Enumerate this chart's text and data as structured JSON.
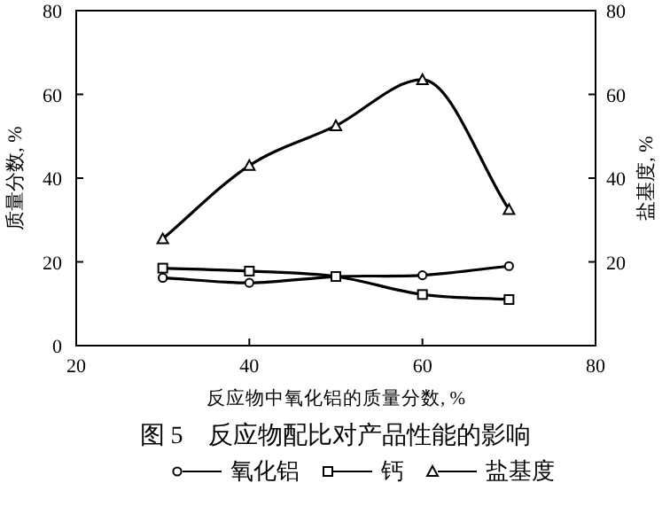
{
  "chart_data": {
    "type": "line",
    "title": "图 5　反应物配比对产品性能的影响",
    "xlabel": "反应物中氧化铝的质量分数, %",
    "ylabel": "质量分数, %",
    "y2label": "盐基度, %",
    "x": [
      30,
      40,
      50,
      60,
      70
    ],
    "series": [
      {
        "name": "氧化铝",
        "color": "#000000",
        "marker": "circle",
        "values": [
          16.2,
          15,
          16.5,
          16.8,
          19
        ]
      },
      {
        "name": "钙",
        "color": "#000000",
        "marker": "square",
        "values": [
          18.5,
          17.8,
          16.5,
          12.2,
          11
        ]
      },
      {
        "name": "盐基度",
        "color": "#000000",
        "marker": "triangle",
        "values": [
          25.5,
          43,
          52.5,
          63.5,
          32.5
        ]
      }
    ],
    "xlim": [
      20,
      80
    ],
    "xticks": [
      20,
      40,
      60,
      80
    ],
    "ylim": [
      0,
      80
    ],
    "yticks": [
      0,
      20,
      40,
      60,
      80
    ],
    "y2lim": [
      0,
      80
    ],
    "y2ticks": [
      20,
      40,
      60,
      80
    ],
    "grid": false,
    "legend": "bottom",
    "line_style": "solid"
  }
}
